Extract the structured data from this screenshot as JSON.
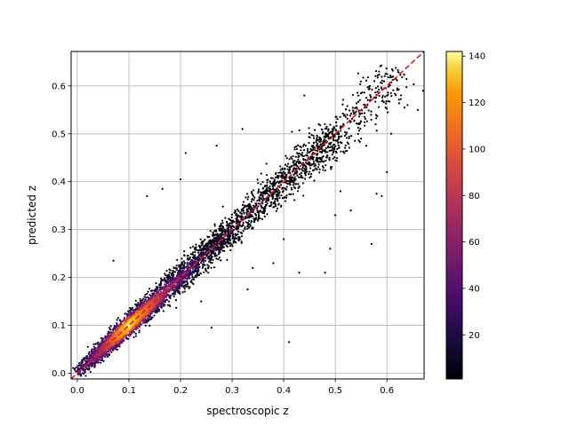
{
  "chart_data": {
    "type": "scatter",
    "title": "",
    "xlabel": "spectroscopic z",
    "ylabel": "predicted z",
    "xlim": [
      -0.012,
      0.672
    ],
    "ylim": [
      -0.012,
      0.672
    ],
    "xticks": [
      0.0,
      0.1,
      0.2,
      0.3,
      0.4,
      0.5,
      0.6
    ],
    "yticks": [
      0.0,
      0.1,
      0.2,
      0.3,
      0.4,
      0.5,
      0.6
    ],
    "xtick_labels": [
      "0.0",
      "0.1",
      "0.2",
      "0.3",
      "0.4",
      "0.5",
      "0.6"
    ],
    "ytick_labels": [
      "0.0",
      "0.1",
      "0.2",
      "0.3",
      "0.4",
      "0.5",
      "0.6"
    ],
    "grid": true,
    "color_by": "point density",
    "colormap": "inferno",
    "colorbar": {
      "range": [
        1,
        142
      ],
      "ticks": [
        20,
        40,
        60,
        80,
        100,
        120,
        140
      ],
      "tick_labels": [
        "20",
        "40",
        "60",
        "80",
        "100",
        "120",
        "140"
      ]
    },
    "reference_line": {
      "name": "",
      "style": "dashed",
      "color": "#e31a1c",
      "x": [
        -0.012,
        0.672
      ],
      "y": [
        -0.012,
        0.672
      ]
    },
    "density_profile": [
      {
        "z": 0.01,
        "density": 30
      },
      {
        "z": 0.05,
        "density": 75
      },
      {
        "z": 0.08,
        "density": 120
      },
      {
        "z": 0.1,
        "density": 140
      },
      {
        "z": 0.13,
        "density": 110
      },
      {
        "z": 0.18,
        "density": 60
      },
      {
        "z": 0.25,
        "density": 15
      },
      {
        "z": 0.35,
        "density": 8
      },
      {
        "z": 0.45,
        "density": 3
      },
      {
        "z": 0.6,
        "density": 1
      }
    ],
    "outliers": [
      {
        "x": 0.21,
        "y": 0.46
      },
      {
        "x": 0.2,
        "y": 0.405
      },
      {
        "x": 0.27,
        "y": 0.475
      },
      {
        "x": 0.135,
        "y": 0.37
      },
      {
        "x": 0.165,
        "y": 0.385
      },
      {
        "x": 0.32,
        "y": 0.51
      },
      {
        "x": 0.4,
        "y": 0.28
      },
      {
        "x": 0.41,
        "y": 0.065
      },
      {
        "x": 0.48,
        "y": 0.21
      },
      {
        "x": 0.43,
        "y": 0.21
      },
      {
        "x": 0.57,
        "y": 0.27
      },
      {
        "x": 0.6,
        "y": 0.42
      },
      {
        "x": 0.58,
        "y": 0.375
      },
      {
        "x": 0.59,
        "y": 0.37
      },
      {
        "x": 0.66,
        "y": 0.55
      },
      {
        "x": 0.67,
        "y": 0.59
      },
      {
        "x": 0.62,
        "y": 0.595
      },
      {
        "x": 0.6,
        "y": 0.58
      },
      {
        "x": 0.51,
        "y": 0.38
      },
      {
        "x": 0.53,
        "y": 0.34
      },
      {
        "x": 0.5,
        "y": 0.33
      },
      {
        "x": 0.35,
        "y": 0.095
      },
      {
        "x": 0.33,
        "y": 0.175
      },
      {
        "x": 0.26,
        "y": 0.095
      },
      {
        "x": 0.24,
        "y": 0.15
      },
      {
        "x": 0.07,
        "y": 0.235
      },
      {
        "x": 0.34,
        "y": 0.22
      },
      {
        "x": 0.38,
        "y": 0.23
      },
      {
        "x": 0.56,
        "y": 0.475
      },
      {
        "x": 0.55,
        "y": 0.49
      },
      {
        "x": 0.64,
        "y": 0.56
      },
      {
        "x": 0.49,
        "y": 0.26
      },
      {
        "x": 0.44,
        "y": 0.58
      }
    ]
  }
}
